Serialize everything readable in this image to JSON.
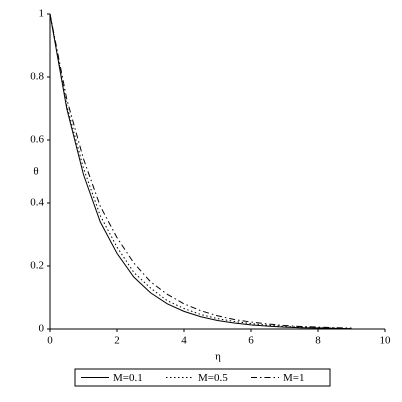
{
  "chart_data": {
    "type": "line",
    "x_label": "η",
    "y_label": "θ",
    "x": [
      0,
      0.5,
      1,
      1.5,
      2,
      2.5,
      3,
      3.5,
      4,
      4.5,
      5,
      5.5,
      6,
      6.5,
      7,
      7.5,
      8,
      8.5,
      9
    ],
    "series": [
      {
        "name": "M=0.1",
        "color": "#000000",
        "linestyle": "solid",
        "values": [
          1,
          0.7,
          0.49,
          0.34,
          0.24,
          0.165,
          0.115,
          0.08,
          0.056,
          0.039,
          0.027,
          0.019,
          0.013,
          0.009,
          0.006,
          0.004,
          0.003,
          0.002,
          0.001
        ]
      },
      {
        "name": "M=0.5",
        "color": "#000000",
        "linestyle": "dotted",
        "values": [
          1,
          0.71,
          0.51,
          0.36,
          0.26,
          0.18,
          0.13,
          0.09,
          0.065,
          0.046,
          0.033,
          0.024,
          0.017,
          0.012,
          0.008,
          0.006,
          0.004,
          0.003,
          0.002
        ]
      },
      {
        "name": "M=1",
        "color": "#000000",
        "linestyle": "dashdot",
        "values": [
          1,
          0.73,
          0.54,
          0.39,
          0.29,
          0.21,
          0.15,
          0.11,
          0.08,
          0.058,
          0.042,
          0.03,
          0.022,
          0.016,
          0.011,
          0.008,
          0.006,
          0.004,
          0.003
        ]
      }
    ],
    "xlim": [
      0,
      10
    ],
    "xticks": [
      0,
      2,
      4,
      6,
      8,
      10
    ],
    "ylim": [
      0,
      1
    ],
    "yticks": [
      0,
      0.2,
      0.4,
      0.6,
      0.8,
      1
    ],
    "legend": "bottom"
  }
}
